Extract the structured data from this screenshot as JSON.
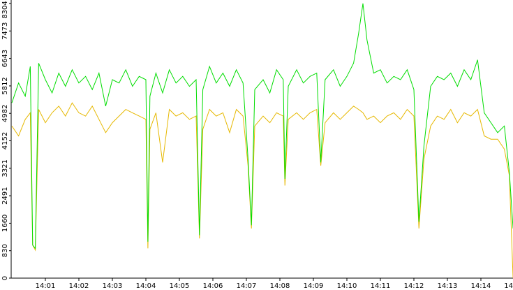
{
  "chart_data": {
    "type": "line",
    "x": [
      0,
      0.2,
      0.4,
      0.55,
      0.62,
      0.7,
      0.8,
      1.0,
      1.2,
      1.4,
      1.6,
      1.8,
      2.0,
      2.2,
      2.4,
      2.6,
      2.8,
      3.0,
      3.2,
      3.4,
      3.6,
      3.8,
      4.0,
      4.06,
      4.12,
      4.3,
      4.5,
      4.7,
      4.9,
      5.1,
      5.3,
      5.5,
      5.6,
      5.7,
      5.9,
      6.1,
      6.3,
      6.5,
      6.7,
      6.9,
      7.05,
      7.15,
      7.25,
      7.5,
      7.7,
      7.9,
      8.1,
      8.15,
      8.25,
      8.5,
      8.7,
      8.9,
      9.1,
      9.22,
      9.35,
      9.6,
      9.8,
      10.0,
      10.2,
      10.35,
      10.48,
      10.6,
      10.8,
      11.0,
      11.2,
      11.4,
      11.6,
      11.8,
      12.0,
      12.15,
      12.3,
      12.5,
      12.7,
      12.9,
      13.1,
      13.3,
      13.5,
      13.7,
      13.9,
      14.1,
      14.3,
      14.5,
      14.7,
      14.85,
      14.96
    ],
    "series": [
      {
        "color": "#00dd00",
        "values": [
          5300,
          5900,
          5500,
          6400,
          1000,
          900,
          6500,
          6000,
          5600,
          6200,
          5800,
          6300,
          5900,
          6100,
          5700,
          6200,
          5200,
          6000,
          5900,
          6300,
          5800,
          6100,
          6000,
          1100,
          5500,
          6200,
          5600,
          6300,
          5900,
          6100,
          5800,
          6000,
          1300,
          5700,
          6400,
          5900,
          6200,
          5800,
          6300,
          5900,
          3600,
          1600,
          5700,
          6000,
          5600,
          6300,
          6000,
          3000,
          5800,
          6300,
          5900,
          6100,
          6200,
          3500,
          6000,
          6300,
          5800,
          6100,
          6500,
          7400,
          8304,
          7200,
          6200,
          6300,
          5900,
          6100,
          6000,
          6300,
          5700,
          1700,
          4000,
          5800,
          6100,
          6000,
          6200,
          5800,
          6300,
          6000,
          6600,
          5000,
          4700,
          4400,
          4600,
          3200,
          1500
        ]
      },
      {
        "color": "#e6b800",
        "values": [
          4600,
          4300,
          4800,
          5000,
          1000,
          850,
          5100,
          4700,
          5000,
          5200,
          4900,
          5300,
          5000,
          4900,
          5200,
          4800,
          4400,
          4700,
          4900,
          5100,
          5000,
          4900,
          4800,
          900,
          4500,
          5000,
          3500,
          5100,
          4900,
          5000,
          4800,
          4900,
          1200,
          4500,
          5100,
          4900,
          5000,
          4400,
          5100,
          4900,
          3400,
          1500,
          4600,
          4900,
          4700,
          5000,
          4900,
          2800,
          4800,
          5000,
          4800,
          5000,
          5100,
          3400,
          4700,
          5000,
          4800,
          5000,
          5200,
          5100,
          5000,
          4800,
          4900,
          4700,
          4900,
          5000,
          4800,
          5100,
          4900,
          1500,
          3600,
          4600,
          4900,
          4800,
          5100,
          4700,
          5000,
          4900,
          5100,
          4300,
          4200,
          4200,
          3900,
          3100,
          0
        ]
      }
    ],
    "xlim": [
      0,
      15
    ],
    "xticks": [
      {
        "value": 1,
        "label": "14:01"
      },
      {
        "value": 2,
        "label": "14:02"
      },
      {
        "value": 3,
        "label": "14:03"
      },
      {
        "value": 4,
        "label": "14:04"
      },
      {
        "value": 5,
        "label": "14:05"
      },
      {
        "value": 6,
        "label": "14:06"
      },
      {
        "value": 7,
        "label": "14:07"
      },
      {
        "value": 8,
        "label": "14:08"
      },
      {
        "value": 9,
        "label": "14:09"
      },
      {
        "value": 10,
        "label": "14:10"
      },
      {
        "value": 11,
        "label": "14:11"
      },
      {
        "value": 12,
        "label": "14:12"
      },
      {
        "value": 13,
        "label": "14:13"
      },
      {
        "value": 14,
        "label": "14:14"
      },
      {
        "value": 15,
        "label": "14"
      }
    ],
    "ylim": [
      0,
      8304
    ],
    "yticks": [
      0,
      830,
      1660,
      2491,
      3321,
      4152,
      4982,
      5812,
      6643,
      7473,
      8304
    ]
  }
}
